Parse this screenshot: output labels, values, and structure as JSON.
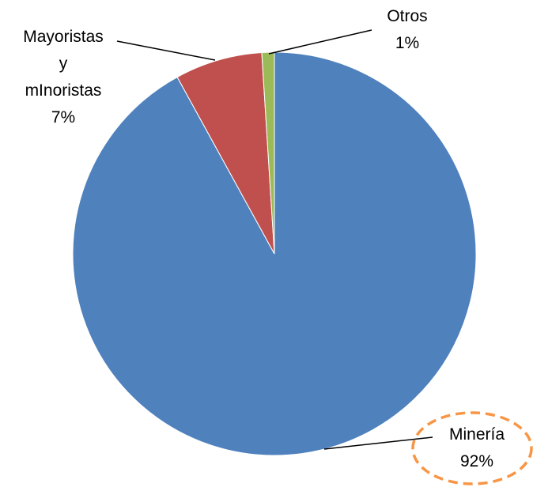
{
  "chart_data": {
    "type": "pie",
    "categories": [
      "Minería",
      "Mayoristas y mInoristas",
      "Otros"
    ],
    "values": [
      92,
      7,
      1
    ],
    "value_labels": [
      "92%",
      "7%",
      "1%"
    ],
    "colors": [
      "#4f81bd",
      "#c0504d",
      "#9bbb59"
    ]
  }
}
